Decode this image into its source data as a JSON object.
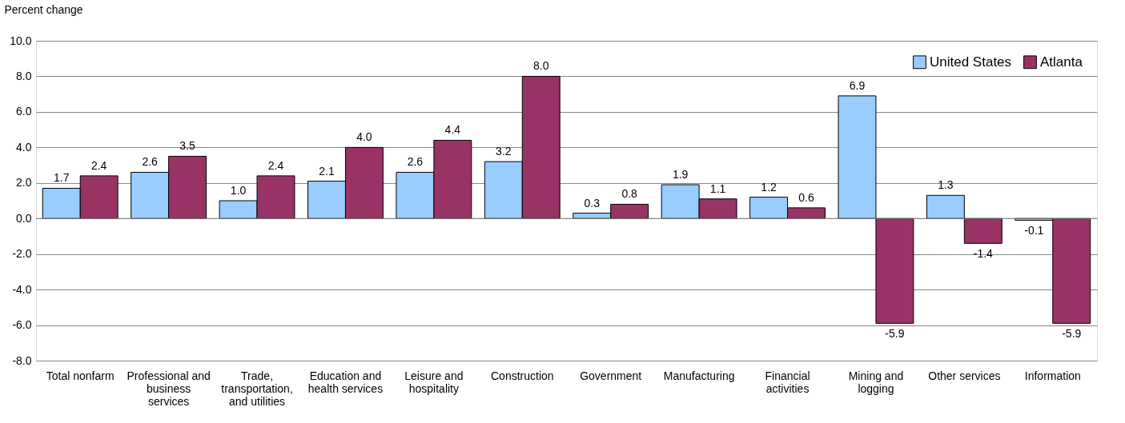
{
  "chart_data": {
    "type": "bar",
    "ylabel": "Percent change",
    "categories": [
      "Total nonfarm",
      "Professional and business services",
      "Trade, transportation, and utilities",
      "Education and health services",
      "Leisure and hospitality",
      "Construction",
      "Government",
      "Manufacturing",
      "Financial activities",
      "Mining and logging",
      "Other services",
      "Information"
    ],
    "series": [
      {
        "name": "United States",
        "color": "#99ccff",
        "values": [
          1.7,
          2.6,
          1.0,
          2.1,
          2.6,
          3.2,
          0.3,
          1.9,
          1.2,
          6.9,
          1.3,
          -0.1
        ],
        "value_labels": [
          "1.7",
          "2.6",
          "1.0",
          "2.1",
          "2.6",
          "3.2",
          "0.3",
          "1.9",
          "1.2",
          "6.9",
          "1.3",
          "-0.1"
        ]
      },
      {
        "name": "Atlanta",
        "color": "#993366",
        "values": [
          2.4,
          3.5,
          2.4,
          4.0,
          4.4,
          8.0,
          0.8,
          1.1,
          0.6,
          -5.9,
          -1.4,
          -5.9
        ],
        "value_labels": [
          "2.4",
          "3.5",
          "2.4",
          "4.0",
          "4.4",
          "8.0",
          "0.8",
          "1.1",
          "0.6",
          "-5.9",
          "-1.4",
          "-5.9"
        ]
      }
    ],
    "ylim": [
      -8,
      10
    ],
    "yticks": [
      {
        "value": -8,
        "label": "-8.0"
      },
      {
        "value": -6,
        "label": "-6.0"
      },
      {
        "value": -4,
        "label": "-4.0"
      },
      {
        "value": -2,
        "label": "-2.0"
      },
      {
        "value": 0,
        "label": "0.0"
      },
      {
        "value": 2,
        "label": "2.0"
      },
      {
        "value": 4,
        "label": "4.0"
      },
      {
        "value": 6,
        "label": "6.0"
      },
      {
        "value": 8,
        "label": "8.0"
      },
      {
        "value": 10,
        "label": "10.0"
      }
    ],
    "grid": "y",
    "legend": "top right"
  }
}
